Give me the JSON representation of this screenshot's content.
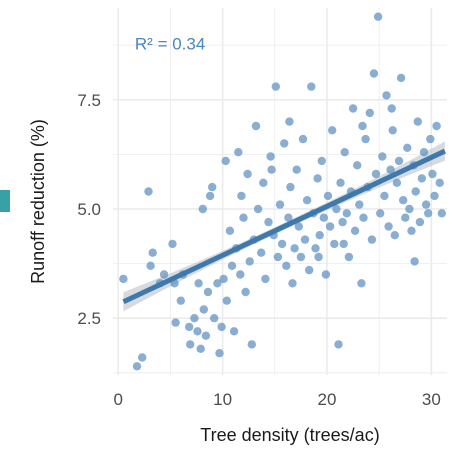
{
  "chart_data": {
    "type": "scatter",
    "title": "",
    "xlabel": "Tree density (trees/ac)",
    "ylabel": "Runoff reduction (%)",
    "xlim": [
      -0.5,
      31.5
    ],
    "ylim": [
      1.2,
      9.6
    ],
    "xticks": [
      0,
      10,
      20,
      30
    ],
    "yticks": [
      2.5,
      5.0,
      7.5
    ],
    "xtick_labels": [
      "0",
      "10",
      "20",
      "30"
    ],
    "ytick_labels": [
      "2.5",
      "5.0",
      "7.5"
    ],
    "grid": true,
    "annotation": "R² = 0.34",
    "colors": {
      "points": "#5b8fbf",
      "line": "#3f78ab",
      "band": "#b9c3cc",
      "grid": "#ebebeb",
      "annotation": "#4a86c1",
      "marker": "#3aa0a8"
    },
    "fit": {
      "intercept": 2.82,
      "slope": 0.112,
      "x_range": [
        0.5,
        31.3
      ],
      "ci_halfwidth_ends": 0.22,
      "ci_halfwidth_mid": 0.08
    },
    "points": [
      [
        0.5,
        3.4
      ],
      [
        1.8,
        1.4
      ],
      [
        2.3,
        1.6
      ],
      [
        2.9,
        5.4
      ],
      [
        3.3,
        4.0
      ],
      [
        3.1,
        3.7
      ],
      [
        4.0,
        3.3
      ],
      [
        4.4,
        3.5
      ],
      [
        5.2,
        4.2
      ],
      [
        5.4,
        3.3
      ],
      [
        5.5,
        2.4
      ],
      [
        6.0,
        2.9
      ],
      [
        6.2,
        3.5
      ],
      [
        6.8,
        2.3
      ],
      [
        6.9,
        1.9
      ],
      [
        7.3,
        2.5
      ],
      [
        7.6,
        2.2
      ],
      [
        7.7,
        3.3
      ],
      [
        7.9,
        1.8
      ],
      [
        8.2,
        2.7
      ],
      [
        8.4,
        2.1
      ],
      [
        8.6,
        3.1
      ],
      [
        8.8,
        5.3
      ],
      [
        9.0,
        5.5
      ],
      [
        9.2,
        2.5
      ],
      [
        9.5,
        3.3
      ],
      [
        9.7,
        1.7
      ],
      [
        9.9,
        2.3
      ],
      [
        10.1,
        3.4
      ],
      [
        10.4,
        2.9
      ],
      [
        10.7,
        4.5
      ],
      [
        10.9,
        3.7
      ],
      [
        11.1,
        2.2
      ],
      [
        11.3,
        4.1
      ],
      [
        11.5,
        6.3
      ],
      [
        11.7,
        3.5
      ],
      [
        12.0,
        4.8
      ],
      [
        12.2,
        3.1
      ],
      [
        12.4,
        5.8
      ],
      [
        12.6,
        3.8
      ],
      [
        12.8,
        1.9
      ],
      [
        13.0,
        4.3
      ],
      [
        13.2,
        6.9
      ],
      [
        13.4,
        5.0
      ],
      [
        13.7,
        4.0
      ],
      [
        13.9,
        5.6
      ],
      [
        14.1,
        3.4
      ],
      [
        14.4,
        4.7
      ],
      [
        14.6,
        6.2
      ],
      [
        14.9,
        4.4
      ],
      [
        15.1,
        7.8
      ],
      [
        15.3,
        3.9
      ],
      [
        15.5,
        5.1
      ],
      [
        15.7,
        4.2
      ],
      [
        15.9,
        6.5
      ],
      [
        16.1,
        3.7
      ],
      [
        16.3,
        4.8
      ],
      [
        16.5,
        5.5
      ],
      [
        16.7,
        3.3
      ],
      [
        16.9,
        4.1
      ],
      [
        17.1,
        5.9
      ],
      [
        17.3,
        4.6
      ],
      [
        17.5,
        3.9
      ],
      [
        17.7,
        6.6
      ],
      [
        17.9,
        4.3
      ],
      [
        18.1,
        5.2
      ],
      [
        18.3,
        3.6
      ],
      [
        18.5,
        7.8
      ],
      [
        18.7,
        4.9
      ],
      [
        18.9,
        4.1
      ],
      [
        19.1,
        5.7
      ],
      [
        19.3,
        4.4
      ],
      [
        19.5,
        6.1
      ],
      [
        19.7,
        4.8
      ],
      [
        19.9,
        3.5
      ],
      [
        20.1,
        5.3
      ],
      [
        20.3,
        4.6
      ],
      [
        20.5,
        6.8
      ],
      [
        20.7,
        4.2
      ],
      [
        20.9,
        5.0
      ],
      [
        21.1,
        1.9
      ],
      [
        21.3,
        5.6
      ],
      [
        21.5,
        4.7
      ],
      [
        21.7,
        6.3
      ],
      [
        21.9,
        4.9
      ],
      [
        22.1,
        3.9
      ],
      [
        22.3,
        5.4
      ],
      [
        22.5,
        7.3
      ],
      [
        22.7,
        4.5
      ],
      [
        22.9,
        6.0
      ],
      [
        23.1,
        5.1
      ],
      [
        23.3,
        3.3
      ],
      [
        23.5,
        4.8
      ],
      [
        23.7,
        6.6
      ],
      [
        23.9,
        5.5
      ],
      [
        24.1,
        7.2
      ],
      [
        24.3,
        4.3
      ],
      [
        24.5,
        8.1
      ],
      [
        24.7,
        5.8
      ],
      [
        24.9,
        9.4
      ],
      [
        25.1,
        4.9
      ],
      [
        25.3,
        6.2
      ],
      [
        25.5,
        5.3
      ],
      [
        25.7,
        7.6
      ],
      [
        25.9,
        4.6
      ],
      [
        26.1,
        5.9
      ],
      [
        26.3,
        6.8
      ],
      [
        26.5,
        4.4
      ],
      [
        26.7,
        5.6
      ],
      [
        26.9,
        6.1
      ],
      [
        27.1,
        8.0
      ],
      [
        27.3,
        5.2
      ],
      [
        27.5,
        4.8
      ],
      [
        27.7,
        6.4
      ],
      [
        27.9,
        5.0
      ],
      [
        28.1,
        4.5
      ],
      [
        28.3,
        6.0
      ],
      [
        28.5,
        5.4
      ],
      [
        28.7,
        7.0
      ],
      [
        28.9,
        4.7
      ],
      [
        29.1,
        5.7
      ],
      [
        29.3,
        6.3
      ],
      [
        29.5,
        5.1
      ],
      [
        29.7,
        4.9
      ],
      [
        29.9,
        6.6
      ],
      [
        30.1,
        5.8
      ],
      [
        30.3,
        5.3
      ],
      [
        30.5,
        6.9
      ],
      [
        30.8,
        5.6
      ],
      [
        31.0,
        4.9
      ],
      [
        8.1,
        5.0
      ],
      [
        10.3,
        6.1
      ],
      [
        11.8,
        5.3
      ],
      [
        14.7,
        5.9
      ],
      [
        16.4,
        7.0
      ],
      [
        19.2,
        3.9
      ],
      [
        21.6,
        4.2
      ],
      [
        23.4,
        6.9
      ],
      [
        26.2,
        7.3
      ],
      [
        28.4,
        3.8
      ]
    ]
  }
}
